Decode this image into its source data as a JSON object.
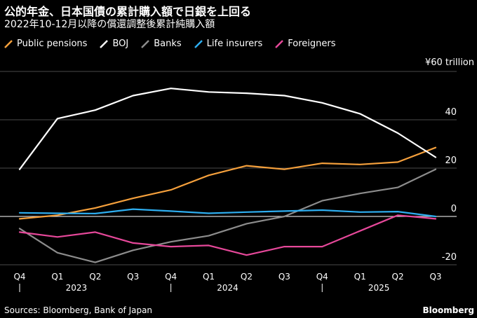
{
  "header": {
    "title": "公的年金、日本国債の累計購入額で日銀を上回る",
    "subtitle": "2022年10-12月以降の償還調整後累計純購入額"
  },
  "legend": [
    {
      "name": "Public pensions",
      "color": "#f5a03c"
    },
    {
      "name": "BOJ",
      "color": "#ffffff"
    },
    {
      "name": "Banks",
      "color": "#8c8c8c"
    },
    {
      "name": "Life insurers",
      "color": "#2eaef0"
    },
    {
      "name": "Foreigners",
      "color": "#e6489a"
    }
  ],
  "footer": {
    "source": "Sources: Bloomberg, Bank of Japan",
    "brand": "Bloomberg"
  },
  "chart_data": {
    "type": "line",
    "title": "公的年金、日本国債の累計購入額で日銀を上回る",
    "subtitle": "2022年10-12月以降の償還調整後累計純購入額",
    "unit_label": "¥60 trillion",
    "categories": [
      "Q4",
      "Q1",
      "Q2",
      "Q3",
      "Q4",
      "Q1",
      "Q2",
      "Q3",
      "Q4",
      "Q1",
      "Q2",
      "Q3"
    ],
    "year_labels": [
      {
        "label": "2023",
        "index": 2
      },
      {
        "label": "2024",
        "index": 6
      },
      {
        "label": "2025",
        "index": 10
      }
    ],
    "year_separators": [
      0,
      4,
      8
    ],
    "ylim": [
      -20,
      60
    ],
    "yticks": [
      {
        "value": 60,
        "label": "¥60 trillion"
      },
      {
        "value": 40,
        "label": "40"
      },
      {
        "value": 20,
        "label": "20"
      },
      {
        "value": 0,
        "label": "0"
      },
      {
        "value": -20,
        "label": "-20"
      }
    ],
    "series": [
      {
        "name": "Public pensions",
        "color": "#f5a03c",
        "values": [
          -1,
          0.5,
          3.5,
          7.5,
          11,
          17,
          21,
          19.5,
          22,
          21.5,
          22.5,
          28.5
        ]
      },
      {
        "name": "BOJ",
        "color": "#ffffff",
        "values": [
          19.5,
          40.5,
          44,
          50,
          53,
          51.5,
          51,
          50,
          47,
          42.5,
          34.5,
          24.5
        ]
      },
      {
        "name": "Banks",
        "color": "#8c8c8c",
        "values": [
          -5,
          -15,
          -19,
          -14,
          -10.5,
          -8,
          -3,
          0,
          6.5,
          9.5,
          12,
          19.5
        ]
      },
      {
        "name": "Life insurers",
        "color": "#2eaef0",
        "values": [
          1.5,
          1.3,
          1.2,
          3,
          2.2,
          1.3,
          1.8,
          2.2,
          2.6,
          1.8,
          2,
          0
        ]
      },
      {
        "name": "Foreigners",
        "color": "#e6489a",
        "values": [
          -6.5,
          -8.5,
          -6.5,
          -11,
          -12.5,
          -12,
          -16,
          -12.5,
          -12.5,
          -6,
          0.5,
          -1
        ]
      }
    ]
  }
}
